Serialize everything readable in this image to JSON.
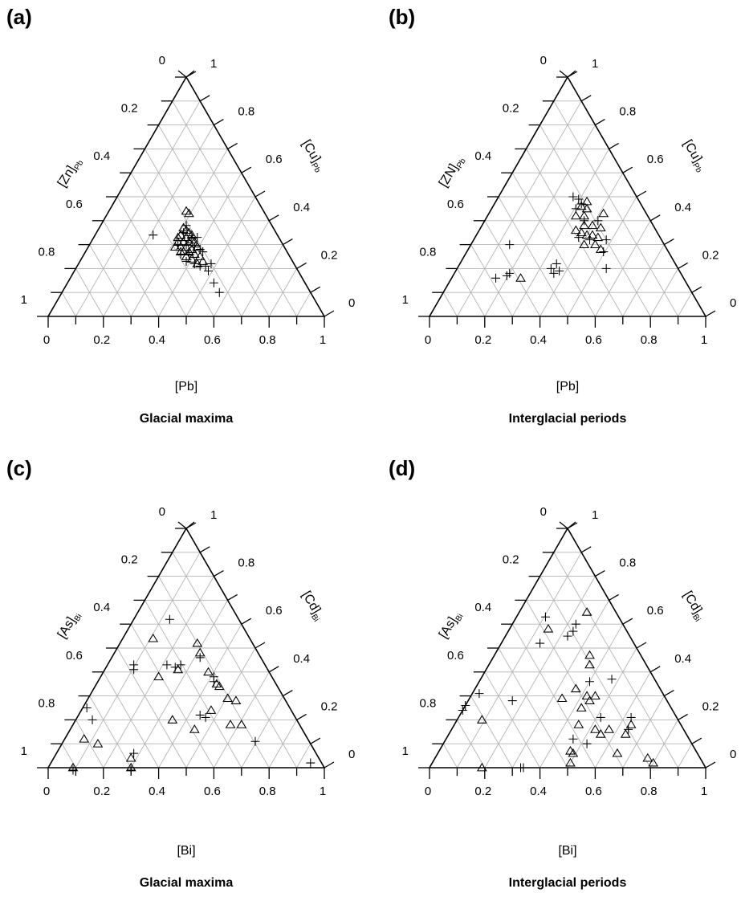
{
  "chart_data": [
    {
      "type": "scatter",
      "subtype": "ternary",
      "panel_label": "(a)",
      "caption": "Glacial maxima",
      "axes": {
        "bottom": {
          "label": "[Pb]",
          "ticks": [
            "0",
            "0.2",
            "0.4",
            "0.6",
            "0.8",
            "1"
          ]
        },
        "left": {
          "label": "[Zn]",
          "label_sub": "Pb",
          "ticks": [
            "0",
            "0.2",
            "0.4",
            "0.6",
            "0.8",
            "1"
          ]
        },
        "right": {
          "label": "[Cu]",
          "label_sub": "Pb",
          "ticks": [
            "1",
            "0.8",
            "0.6",
            "0.4",
            "0.2",
            "0"
          ]
        }
      },
      "grid": true,
      "legend": "none",
      "series": [
        {
          "marker": "triangle",
          "points": [
            {
              "x": 0.5,
              "y": 0.44
            },
            {
              "x": 0.51,
              "y": 0.43
            },
            {
              "x": 0.49,
              "y": 0.37
            },
            {
              "x": 0.5,
              "y": 0.36
            },
            {
              "x": 0.51,
              "y": 0.35
            },
            {
              "x": 0.48,
              "y": 0.34
            },
            {
              "x": 0.5,
              "y": 0.33
            },
            {
              "x": 0.52,
              "y": 0.34
            },
            {
              "x": 0.47,
              "y": 0.31
            },
            {
              "x": 0.49,
              "y": 0.31
            },
            {
              "x": 0.51,
              "y": 0.31
            },
            {
              "x": 0.53,
              "y": 0.31
            },
            {
              "x": 0.46,
              "y": 0.29
            },
            {
              "x": 0.48,
              "y": 0.29
            },
            {
              "x": 0.5,
              "y": 0.29
            },
            {
              "x": 0.52,
              "y": 0.28
            },
            {
              "x": 0.54,
              "y": 0.29
            },
            {
              "x": 0.49,
              "y": 0.27
            },
            {
              "x": 0.51,
              "y": 0.27
            },
            {
              "x": 0.53,
              "y": 0.26
            },
            {
              "x": 0.55,
              "y": 0.25
            },
            {
              "x": 0.5,
              "y": 0.25
            },
            {
              "x": 0.52,
              "y": 0.24
            },
            {
              "x": 0.56,
              "y": 0.23
            },
            {
              "x": 0.54,
              "y": 0.22
            },
            {
              "x": 0.47,
              "y": 0.33
            },
            {
              "x": 0.52,
              "y": 0.32
            },
            {
              "x": 0.48,
              "y": 0.27
            }
          ]
        },
        {
          "marker": "plus",
          "points": [
            {
              "x": 0.38,
              "y": 0.34
            },
            {
              "x": 0.5,
              "y": 0.38
            },
            {
              "x": 0.49,
              "y": 0.35
            },
            {
              "x": 0.52,
              "y": 0.33
            },
            {
              "x": 0.54,
              "y": 0.33
            },
            {
              "x": 0.47,
              "y": 0.3
            },
            {
              "x": 0.5,
              "y": 0.3
            },
            {
              "x": 0.53,
              "y": 0.29
            },
            {
              "x": 0.55,
              "y": 0.28
            },
            {
              "x": 0.48,
              "y": 0.26
            },
            {
              "x": 0.51,
              "y": 0.26
            },
            {
              "x": 0.56,
              "y": 0.27
            },
            {
              "x": 0.5,
              "y": 0.23
            },
            {
              "x": 0.53,
              "y": 0.22
            },
            {
              "x": 0.55,
              "y": 0.21
            },
            {
              "x": 0.59,
              "y": 0.22
            },
            {
              "x": 0.58,
              "y": 0.19
            },
            {
              "x": 0.6,
              "y": 0.14
            },
            {
              "x": 0.62,
              "y": 0.1
            },
            {
              "x": 0.57,
              "y": 0.21
            }
          ]
        }
      ]
    },
    {
      "type": "scatter",
      "subtype": "ternary",
      "panel_label": "(b)",
      "caption": "Interglacial periods",
      "axes": {
        "bottom": {
          "label": "[Pb]",
          "ticks": [
            "0",
            "0.2",
            "0.4",
            "0.6",
            "0.8",
            "1"
          ]
        },
        "left": {
          "label": "[ZN]",
          "label_sub": "Pb",
          "ticks": [
            "0",
            "0.2",
            "0.4",
            "0.6",
            "0.8",
            "1"
          ]
        },
        "right": {
          "label": "[Cu]",
          "label_sub": "Pb",
          "ticks": [
            "1",
            "0.8",
            "0.6",
            "0.4",
            "0.2",
            "0"
          ]
        }
      },
      "grid": true,
      "legend": "none",
      "series": [
        {
          "marker": "triangle",
          "points": [
            {
              "x": 0.57,
              "y": 0.48
            },
            {
              "x": 0.55,
              "y": 0.46
            },
            {
              "x": 0.57,
              "y": 0.45
            },
            {
              "x": 0.53,
              "y": 0.42
            },
            {
              "x": 0.56,
              "y": 0.42
            },
            {
              "x": 0.63,
              "y": 0.43
            },
            {
              "x": 0.56,
              "y": 0.38
            },
            {
              "x": 0.59,
              "y": 0.38
            },
            {
              "x": 0.62,
              "y": 0.37
            },
            {
              "x": 0.53,
              "y": 0.36
            },
            {
              "x": 0.55,
              "y": 0.35
            },
            {
              "x": 0.57,
              "y": 0.34
            },
            {
              "x": 0.59,
              "y": 0.34
            },
            {
              "x": 0.61,
              "y": 0.33
            },
            {
              "x": 0.56,
              "y": 0.3
            },
            {
              "x": 0.6,
              "y": 0.3
            },
            {
              "x": 0.62,
              "y": 0.28
            },
            {
              "x": 0.33,
              "y": 0.16
            }
          ]
        },
        {
          "marker": "plus",
          "points": [
            {
              "x": 0.52,
              "y": 0.5
            },
            {
              "x": 0.54,
              "y": 0.49
            },
            {
              "x": 0.55,
              "y": 0.47
            },
            {
              "x": 0.53,
              "y": 0.45
            },
            {
              "x": 0.56,
              "y": 0.4
            },
            {
              "x": 0.61,
              "y": 0.4
            },
            {
              "x": 0.54,
              "y": 0.33
            },
            {
              "x": 0.58,
              "y": 0.32
            },
            {
              "x": 0.64,
              "y": 0.32
            },
            {
              "x": 0.63,
              "y": 0.27
            },
            {
              "x": 0.64,
              "y": 0.2
            },
            {
              "x": 0.29,
              "y": 0.3
            },
            {
              "x": 0.24,
              "y": 0.16
            },
            {
              "x": 0.28,
              "y": 0.17
            },
            {
              "x": 0.29,
              "y": 0.18
            },
            {
              "x": 0.44,
              "y": 0.2
            },
            {
              "x": 0.46,
              "y": 0.22
            },
            {
              "x": 0.47,
              "y": 0.19
            },
            {
              "x": 0.45,
              "y": 0.18
            }
          ]
        }
      ]
    },
    {
      "type": "scatter",
      "subtype": "ternary",
      "panel_label": "(c)",
      "caption": "Glacial maxima",
      "axes": {
        "bottom": {
          "label": "[Bi]",
          "ticks": [
            "0",
            "0.2",
            "0.4",
            "0.6",
            "0.8",
            "1"
          ]
        },
        "left": {
          "label": "[As]",
          "label_sub": "Bi",
          "ticks": [
            "0",
            "0.2",
            "0.4",
            "0.6",
            "0.8",
            "1"
          ]
        },
        "right": {
          "label": "[Cd]",
          "label_sub": "Bi",
          "ticks": [
            "1",
            "0.8",
            "0.6",
            "0.4",
            "0.2",
            "0"
          ]
        }
      },
      "grid": true,
      "legend": "none",
      "series": [
        {
          "marker": "triangle",
          "points": [
            {
              "x": 0.38,
              "y": 0.54
            },
            {
              "x": 0.54,
              "y": 0.52
            },
            {
              "x": 0.55,
              "y": 0.48
            },
            {
              "x": 0.4,
              "y": 0.38
            },
            {
              "x": 0.47,
              "y": 0.41
            },
            {
              "x": 0.58,
              "y": 0.4
            },
            {
              "x": 0.61,
              "y": 0.35
            },
            {
              "x": 0.62,
              "y": 0.34
            },
            {
              "x": 0.65,
              "y": 0.29
            },
            {
              "x": 0.68,
              "y": 0.28
            },
            {
              "x": 0.59,
              "y": 0.24
            },
            {
              "x": 0.45,
              "y": 0.2
            },
            {
              "x": 0.53,
              "y": 0.16
            },
            {
              "x": 0.66,
              "y": 0.18
            },
            {
              "x": 0.7,
              "y": 0.18
            },
            {
              "x": 0.13,
              "y": 0.12
            },
            {
              "x": 0.18,
              "y": 0.1
            },
            {
              "x": 0.3,
              "y": 0.04
            },
            {
              "x": 0.09,
              "y": 0.0
            },
            {
              "x": 0.3,
              "y": 0.0
            }
          ]
        },
        {
          "marker": "plus",
          "points": [
            {
              "x": 0.44,
              "y": 0.62
            },
            {
              "x": 0.31,
              "y": 0.43
            },
            {
              "x": 0.31,
              "y": 0.41
            },
            {
              "x": 0.43,
              "y": 0.43
            },
            {
              "x": 0.46,
              "y": 0.42
            },
            {
              "x": 0.48,
              "y": 0.43
            },
            {
              "x": 0.55,
              "y": 0.46
            },
            {
              "x": 0.6,
              "y": 0.38
            },
            {
              "x": 0.6,
              "y": 0.36
            },
            {
              "x": 0.55,
              "y": 0.22
            },
            {
              "x": 0.57,
              "y": 0.21
            },
            {
              "x": 0.14,
              "y": 0.25
            },
            {
              "x": 0.16,
              "y": 0.2
            },
            {
              "x": 0.31,
              "y": 0.06
            },
            {
              "x": 0.75,
              "y": 0.11
            },
            {
              "x": 0.95,
              "y": 0.02
            },
            {
              "x": 0.09,
              "y": -0.01
            },
            {
              "x": 0.3,
              "y": -0.01
            }
          ]
        }
      ]
    },
    {
      "type": "scatter",
      "subtype": "ternary",
      "panel_label": "(d)",
      "caption": "Interglacial periods",
      "axes": {
        "bottom": {
          "label": "[Bi]",
          "ticks": [
            "0",
            "0.2",
            "0.4",
            "0.6",
            "0.8",
            "1"
          ]
        },
        "left": {
          "label": "[As]",
          "label_sub": "Bi",
          "ticks": [
            "0",
            "0.2",
            "0.4",
            "0.6",
            "0.8",
            "1"
          ]
        },
        "right": {
          "label": "[Cd]",
          "label_sub": "Bi",
          "ticks": [
            "1",
            "0.8",
            "0.6",
            "0.4",
            "0.2",
            "0"
          ]
        }
      },
      "grid": true,
      "legend": "none",
      "series": [
        {
          "marker": "triangle",
          "points": [
            {
              "x": 0.57,
              "y": 0.65
            },
            {
              "x": 0.43,
              "y": 0.58
            },
            {
              "x": 0.58,
              "y": 0.47
            },
            {
              "x": 0.58,
              "y": 0.43
            },
            {
              "x": 0.53,
              "y": 0.33
            },
            {
              "x": 0.57,
              "y": 0.3
            },
            {
              "x": 0.48,
              "y": 0.29
            },
            {
              "x": 0.58,
              "y": 0.28
            },
            {
              "x": 0.55,
              "y": 0.25
            },
            {
              "x": 0.6,
              "y": 0.3
            },
            {
              "x": 0.54,
              "y": 0.18
            },
            {
              "x": 0.6,
              "y": 0.16
            },
            {
              "x": 0.62,
              "y": 0.14
            },
            {
              "x": 0.65,
              "y": 0.16
            },
            {
              "x": 0.71,
              "y": 0.14
            },
            {
              "x": 0.73,
              "y": 0.18
            },
            {
              "x": 0.51,
              "y": 0.07
            },
            {
              "x": 0.52,
              "y": 0.06
            },
            {
              "x": 0.51,
              "y": 0.02
            },
            {
              "x": 0.68,
              "y": 0.06
            },
            {
              "x": 0.79,
              "y": 0.04
            },
            {
              "x": 0.81,
              "y": 0.02
            },
            {
              "x": 0.19,
              "y": 0.2
            },
            {
              "x": 0.19,
              "y": 0.0
            }
          ]
        },
        {
          "marker": "plus",
          "points": [
            {
              "x": 0.42,
              "y": 0.63
            },
            {
              "x": 0.53,
              "y": 0.6
            },
            {
              "x": 0.52,
              "y": 0.57
            },
            {
              "x": 0.5,
              "y": 0.55
            },
            {
              "x": 0.4,
              "y": 0.52
            },
            {
              "x": 0.58,
              "y": 0.36
            },
            {
              "x": 0.66,
              "y": 0.37
            },
            {
              "x": 0.3,
              "y": 0.28
            },
            {
              "x": 0.18,
              "y": 0.31
            },
            {
              "x": 0.13,
              "y": 0.26
            },
            {
              "x": 0.12,
              "y": 0.24
            },
            {
              "x": 0.62,
              "y": 0.21
            },
            {
              "x": 0.73,
              "y": 0.21
            },
            {
              "x": 0.72,
              "y": 0.16
            },
            {
              "x": 0.57,
              "y": 0.1
            },
            {
              "x": 0.52,
              "y": 0.12
            },
            {
              "x": 0.33,
              "y": 0.0
            },
            {
              "x": 0.34,
              "y": 0.0
            }
          ]
        }
      ]
    }
  ]
}
